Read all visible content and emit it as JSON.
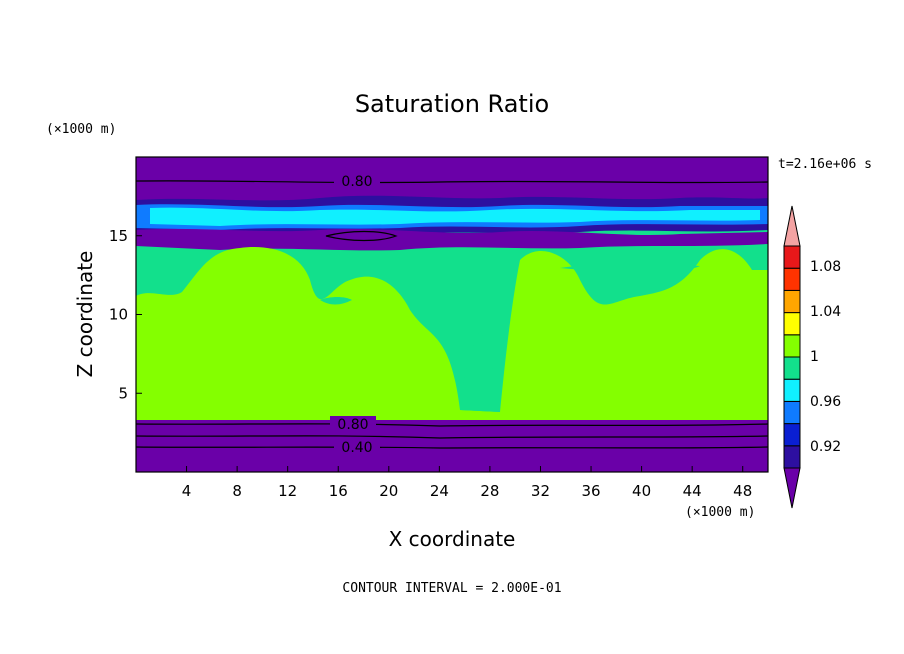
{
  "chart_data": {
    "type": "heatmap",
    "title": "Saturation Ratio",
    "xlabel": "X coordinate",
    "ylabel": "Z coordinate",
    "x_unit": "(×1000 m)",
    "y_unit": "(×1000 m)",
    "time_label": "t=2.16e+06 s",
    "footer": "CONTOUR INTERVAL = 2.000E-01",
    "xlim": [
      0,
      50
    ],
    "ylim": [
      0,
      20
    ],
    "xticks": [
      "4",
      "8",
      "12",
      "16",
      "20",
      "24",
      "28",
      "32",
      "36",
      "40",
      "44",
      "48"
    ],
    "yticks": [
      "5",
      "10",
      "15"
    ],
    "contour_labels": [
      "0.80",
      "0.80",
      "0.40"
    ],
    "colorbar": {
      "labels": [
        "1.08",
        "1.04",
        "1",
        "0.96",
        "0.92"
      ],
      "levels": [
        0.9,
        0.92,
        0.94,
        0.96,
        0.98,
        1.0,
        1.02,
        1.04,
        1.06,
        1.08,
        1.1
      ],
      "colors": [
        "#6a00a8",
        "#2d0fa0",
        "#0a1fd2",
        "#0f7bff",
        "#10f0ff",
        "#12e08c",
        "#84ff00",
        "#ffff00",
        "#ffa600",
        "#ff3300",
        "#e8181a",
        "#f4a3a3"
      ]
    }
  }
}
